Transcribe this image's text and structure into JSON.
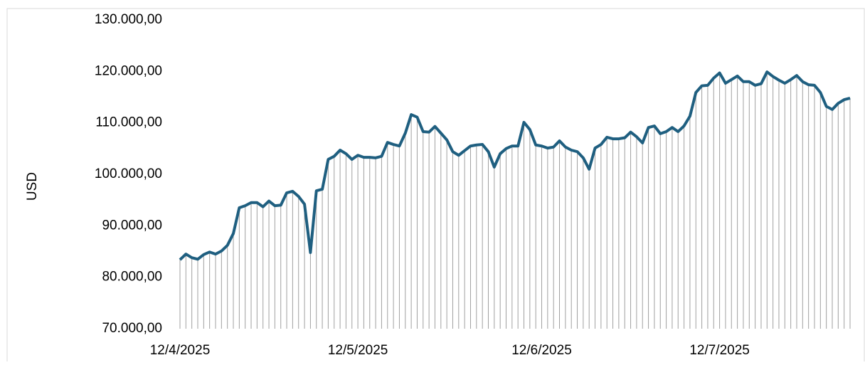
{
  "chart_data": {
    "type": "line",
    "y_label": "USD",
    "categories": [
      "12/4/2025",
      null,
      null,
      null,
      null,
      null,
      null,
      null,
      null,
      null,
      null,
      null,
      null,
      null,
      null,
      null,
      null,
      null,
      null,
      null,
      null,
      null,
      null,
      null,
      null,
      null,
      null,
      null,
      null,
      null,
      "12/5/2025",
      null,
      null,
      null,
      null,
      null,
      null,
      null,
      null,
      null,
      null,
      null,
      null,
      null,
      null,
      null,
      null,
      null,
      null,
      null,
      null,
      null,
      null,
      null,
      null,
      null,
      null,
      null,
      null,
      null,
      null,
      "12/6/2025",
      null,
      null,
      null,
      null,
      null,
      null,
      null,
      null,
      null,
      null,
      null,
      null,
      null,
      null,
      null,
      null,
      null,
      null,
      null,
      null,
      null,
      null,
      null,
      null,
      null,
      null,
      null,
      null,
      null,
      "12/7/2025",
      null,
      null,
      null,
      null,
      null,
      null,
      null,
      null,
      null,
      null,
      null,
      null,
      null,
      null,
      null,
      null,
      null,
      null,
      null,
      null,
      null,
      null
    ],
    "series": [
      {
        "name": "USD",
        "color": "#1f5f80",
        "drop_line_color": "#a0a0a0",
        "values": [
          83400,
          84500,
          83800,
          83500,
          84400,
          84900,
          84500,
          85100,
          86200,
          88500,
          93500,
          93900,
          94500,
          94500,
          93700,
          94800,
          93900,
          94000,
          96400,
          96700,
          95700,
          94200,
          84800,
          96800,
          97100,
          102900,
          103500,
          104700,
          104000,
          102900,
          103700,
          103300,
          103300,
          103200,
          103500,
          106200,
          105800,
          105500,
          108000,
          111600,
          111100,
          108300,
          108200,
          109300,
          108000,
          106700,
          104400,
          103700,
          104600,
          105500,
          105700,
          105800,
          104400,
          101400,
          104000,
          105000,
          105500,
          105500,
          110100,
          108700,
          105700,
          105500,
          105100,
          105300,
          106500,
          105300,
          104700,
          104400,
          103200,
          101000,
          105100,
          105800,
          107200,
          106900,
          106900,
          107100,
          108200,
          107300,
          106100,
          109100,
          109400,
          107900,
          108300,
          109100,
          108300,
          109400,
          111300,
          115900,
          117200,
          117300,
          118700,
          119700,
          117700,
          118400,
          119100,
          118000,
          118000,
          117300,
          117600,
          119900,
          119000,
          118300,
          117700,
          118400,
          119200,
          118000,
          117400,
          117300,
          115900,
          113200,
          112600,
          113800,
          114500,
          114800
        ]
      }
    ],
    "ylim": [
      70000,
      130000
    ],
    "yticks": [
      {
        "value": 70000,
        "label": "70.000,00"
      },
      {
        "value": 80000,
        "label": "80.000,00"
      },
      {
        "value": 90000,
        "label": "90.000,00"
      },
      {
        "value": 100000,
        "label": "100.000,00"
      },
      {
        "value": 110000,
        "label": "110.000,00"
      },
      {
        "value": 120000,
        "label": "120.000,00"
      },
      {
        "value": 130000,
        "label": "130.000,00"
      }
    ],
    "grid": false
  }
}
